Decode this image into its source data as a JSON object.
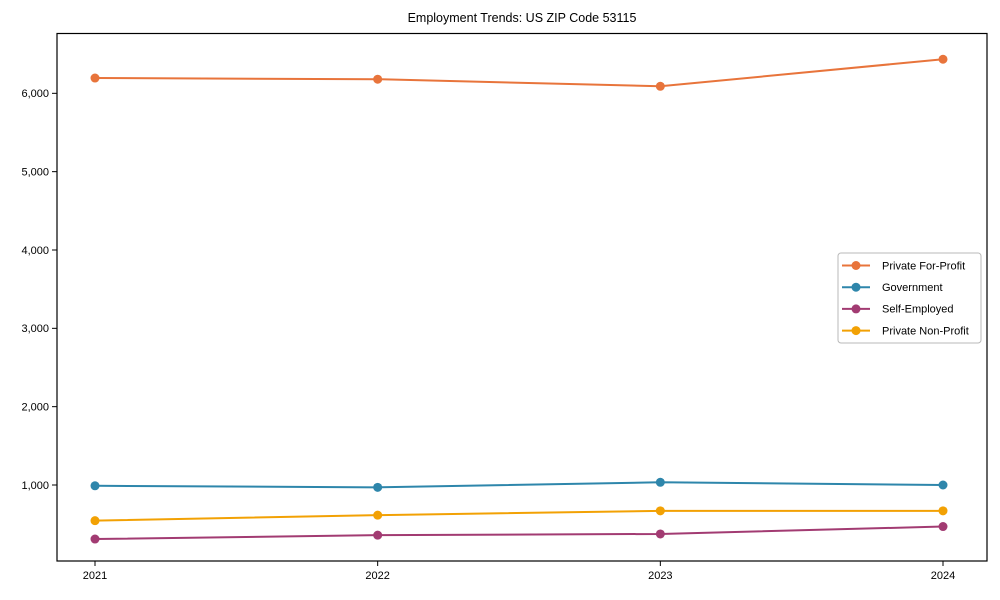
{
  "chart_data": {
    "type": "line",
    "title": "Employment Trends: US ZIP Code 53115",
    "xlabel": "",
    "ylabel": "",
    "x": [
      2021,
      2022,
      2023,
      2024
    ],
    "x_tick_labels": [
      "2021",
      "2022",
      "2023",
      "2024"
    ],
    "y_tick_values": [
      1000,
      2000,
      3000,
      4000,
      5000,
      6000
    ],
    "y_tick_labels": [
      "1,000",
      "2,000",
      "3,000",
      "4,000",
      "5,000",
      "6,000"
    ],
    "ylim": [
      20,
      6745
    ],
    "grid": false,
    "legend_position": "center-right",
    "legend_entries": [
      "Private For-Profit",
      "Government",
      "Self-Employed",
      "Private Non-Profit"
    ],
    "series": [
      {
        "name": "Private For-Profit",
        "color": "#E8743B",
        "values": [
          6195,
          6180,
          6090,
          6435
        ]
      },
      {
        "name": "Government",
        "color": "#2E86AB",
        "values": [
          990,
          970,
          1035,
          1000
        ]
      },
      {
        "name": "Self-Employed",
        "color": "#A23B72",
        "values": [
          310,
          360,
          375,
          470
        ]
      },
      {
        "name": "Private Non-Profit",
        "color": "#F2A104",
        "values": [
          545,
          615,
          670,
          670
        ]
      }
    ]
  }
}
